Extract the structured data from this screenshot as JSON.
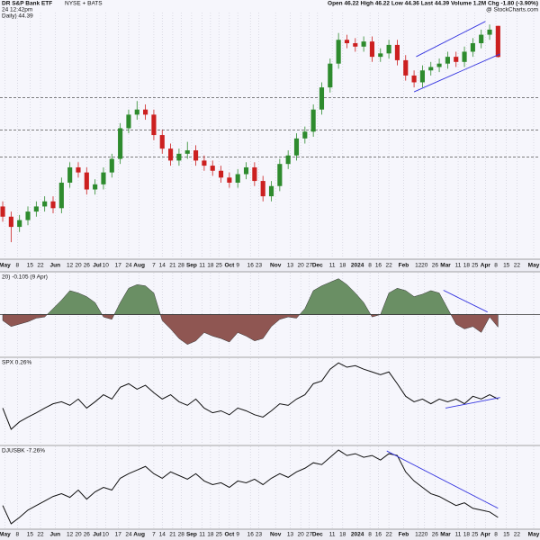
{
  "chart_data": [
    {
      "type": "candlestick",
      "title": "DR S&P Bank ETF",
      "subtitle": "NYSE + BATS",
      "quote": "Open 46.22 High 46.22 Low 44.36 Last 44.39 Volume 1.2M Chg -1.80 (-3.90%)",
      "timestamp": "24 12:42pm",
      "credit": "@ StockCharts.com",
      "label": "Daily) 44.39",
      "up_color": "#2e8b2e",
      "down_color": "#cc2020",
      "grid": true,
      "xlim": [
        -1.3,
        256
      ],
      "ylim": [
        32.5,
        47
      ],
      "x": [
        0,
        4,
        8,
        12,
        16,
        20,
        24,
        28,
        32,
        36,
        40,
        44,
        48,
        52,
        56,
        60,
        64,
        68,
        72,
        76,
        80,
        84,
        88,
        92,
        96,
        100,
        104,
        108,
        112,
        116,
        120,
        124,
        128,
        132,
        136,
        140,
        144,
        148,
        152,
        156,
        160,
        164,
        168,
        172,
        176,
        180,
        184,
        188,
        192,
        196,
        200,
        204,
        208,
        212,
        216,
        220,
        224,
        228,
        232,
        236
      ],
      "open": [
        35.6,
        35.0,
        34.4,
        34.8,
        35.3,
        35.6,
        35.9,
        35.5,
        37.0,
        37.9,
        37.6,
        36.6,
        36.9,
        37.6,
        38.4,
        40.2,
        41.0,
        41.3,
        41.0,
        39.8,
        39.0,
        38.3,
        38.7,
        38.9,
        38.3,
        38.0,
        37.7,
        37.3,
        37.0,
        37.5,
        37.9,
        37.1,
        36.2,
        36.8,
        38.1,
        38.6,
        39.6,
        40.0,
        41.3,
        42.6,
        44.0,
        45.4,
        45.2,
        45.0,
        45.3,
        44.4,
        44.6,
        45.1,
        44.2,
        43.3,
        42.9,
        43.6,
        43.8,
        44.0,
        44.4,
        44.1,
        44.7,
        45.2,
        45.7,
        46.22
      ],
      "high": [
        35.9,
        35.3,
        35.1,
        35.6,
        35.9,
        36.2,
        36.2,
        37.3,
        38.2,
        38.2,
        37.9,
        37.2,
        37.9,
        38.7,
        40.5,
        41.3,
        41.8,
        41.6,
        41.3,
        40.1,
        39.3,
        39.0,
        39.4,
        39.2,
        38.6,
        38.3,
        38.0,
        37.6,
        37.8,
        38.2,
        38.2,
        37.4,
        37.1,
        38.4,
        38.9,
        39.9,
        40.3,
        41.6,
        42.9,
        44.3,
        45.8,
        45.7,
        45.5,
        45.6,
        45.6,
        44.9,
        45.4,
        45.4,
        44.5,
        43.6,
        43.9,
        44.1,
        44.3,
        44.7,
        44.7,
        45.0,
        45.5,
        46.0,
        46.3,
        46.22
      ],
      "low": [
        34.7,
        33.5,
        34.1,
        34.5,
        35.0,
        35.3,
        35.2,
        35.2,
        36.7,
        37.3,
        36.3,
        36.3,
        36.6,
        37.3,
        38.1,
        39.9,
        40.7,
        40.7,
        39.5,
        38.7,
        38.0,
        38.0,
        38.4,
        38.0,
        37.7,
        37.4,
        37.0,
        36.7,
        36.7,
        37.2,
        36.8,
        35.9,
        35.9,
        36.5,
        37.8,
        38.3,
        39.3,
        39.7,
        41.0,
        42.3,
        43.7,
        44.9,
        44.7,
        44.7,
        44.1,
        44.1,
        44.3,
        43.9,
        43.0,
        42.6,
        42.6,
        43.3,
        43.5,
        43.7,
        43.8,
        43.8,
        44.4,
        44.9,
        45.4,
        44.36
      ],
      "close": [
        35.0,
        34.4,
        34.8,
        35.3,
        35.6,
        35.9,
        35.5,
        37.0,
        37.9,
        37.6,
        36.6,
        36.9,
        37.6,
        38.4,
        40.2,
        41.0,
        41.3,
        41.0,
        39.8,
        39.0,
        38.3,
        38.7,
        38.9,
        38.3,
        38.0,
        37.7,
        37.3,
        37.0,
        37.5,
        37.9,
        37.1,
        36.2,
        36.8,
        38.1,
        38.6,
        39.6,
        40.0,
        41.3,
        42.6,
        44.0,
        45.4,
        45.2,
        45.0,
        45.3,
        44.4,
        44.6,
        45.1,
        44.2,
        43.3,
        42.9,
        43.6,
        43.8,
        44.0,
        44.4,
        44.1,
        44.7,
        45.2,
        45.7,
        46.0,
        44.39
      ],
      "reference_lines": [
        42.0,
        40.1,
        38.5
      ],
      "trendline_color": "#3434e0",
      "trendlines": [
        {
          "x": [
            196,
            237
          ],
          "values": [
            42.34,
            44.57
          ]
        },
        {
          "x": [
            197,
            230
          ],
          "values": [
            44.41,
            46.48
          ]
        }
      ],
      "xticks": [
        {
          "value": 1,
          "label": "May"
        },
        {
          "value": 7,
          "label": "8"
        },
        {
          "value": 13,
          "label": "15"
        },
        {
          "value": 18,
          "label": "22"
        },
        {
          "value": 25,
          "label": "Jun"
        },
        {
          "value": 32,
          "label": "12"
        },
        {
          "value": 36,
          "label": "20"
        },
        {
          "value": 40,
          "label": "26"
        },
        {
          "value": 45,
          "label": "Jul"
        },
        {
          "value": 49,
          "label": "10"
        },
        {
          "value": 55,
          "label": "17"
        },
        {
          "value": 60,
          "label": "24"
        },
        {
          "value": 65,
          "label": "Aug"
        },
        {
          "value": 72,
          "label": "7"
        },
        {
          "value": 76,
          "label": "14"
        },
        {
          "value": 81,
          "label": "21"
        },
        {
          "value": 85,
          "label": "28"
        },
        {
          "value": 90,
          "label": "Sep"
        },
        {
          "value": 95,
          "label": "11"
        },
        {
          "value": 99,
          "label": "18"
        },
        {
          "value": 103,
          "label": "25"
        },
        {
          "value": 108,
          "label": "Oct"
        },
        {
          "value": 112,
          "label": "9"
        },
        {
          "value": 118,
          "label": "16"
        },
        {
          "value": 122,
          "label": "23"
        },
        {
          "value": 130,
          "label": "Nov"
        },
        {
          "value": 137,
          "label": "13"
        },
        {
          "value": 142,
          "label": "20"
        },
        {
          "value": 146,
          "label": "27"
        },
        {
          "value": 150,
          "label": "Dec"
        },
        {
          "value": 157,
          "label": "11"
        },
        {
          "value": 162,
          "label": "18"
        },
        {
          "value": 169,
          "label": "2024"
        },
        {
          "value": 175,
          "label": "8"
        },
        {
          "value": 179,
          "label": "16"
        },
        {
          "value": 184,
          "label": "22"
        },
        {
          "value": 191,
          "label": "Feb"
        },
        {
          "value": 198,
          "label": "12"
        },
        {
          "value": 201,
          "label": "20"
        },
        {
          "value": 206,
          "label": "26"
        },
        {
          "value": 211,
          "label": "Mar"
        },
        {
          "value": 217,
          "label": "11"
        },
        {
          "value": 221,
          "label": "18"
        },
        {
          "value": 225,
          "label": "25"
        },
        {
          "value": 230,
          "label": "Apr"
        },
        {
          "value": 235,
          "label": "8"
        },
        {
          "value": 240,
          "label": "15"
        },
        {
          "value": 245,
          "label": "22"
        },
        {
          "value": 253,
          "label": "May"
        }
      ]
    },
    {
      "type": "area",
      "label": "20) -0.105 (9 Apr)",
      "pos_color": "#6a8f64",
      "neg_color": "#8f5652",
      "grid": true,
      "xlim": [
        -1.3,
        256
      ],
      "ylim": [
        -0.35,
        0.35
      ],
      "x": [
        0,
        4,
        8,
        12,
        16,
        20,
        24,
        28,
        32,
        36,
        40,
        44,
        48,
        52,
        56,
        60,
        64,
        68,
        72,
        76,
        80,
        84,
        88,
        92,
        96,
        100,
        104,
        108,
        112,
        116,
        120,
        124,
        128,
        132,
        136,
        140,
        144,
        148,
        152,
        156,
        160,
        164,
        168,
        172,
        176,
        180,
        184,
        188,
        192,
        196,
        200,
        204,
        208,
        212,
        216,
        220,
        224,
        228,
        232,
        236
      ],
      "values": [
        -0.05,
        -0.1,
        -0.08,
        -0.06,
        -0.03,
        -0.02,
        0.05,
        0.12,
        0.2,
        0.18,
        0.15,
        0.1,
        -0.02,
        -0.04,
        0.1,
        0.22,
        0.25,
        0.24,
        0.18,
        -0.05,
        -0.12,
        -0.2,
        -0.25,
        -0.22,
        -0.15,
        -0.18,
        -0.2,
        -0.23,
        -0.15,
        -0.18,
        -0.22,
        -0.2,
        -0.1,
        -0.04,
        -0.02,
        -0.03,
        0.05,
        0.2,
        0.24,
        0.27,
        0.3,
        0.25,
        0.18,
        0.1,
        -0.02,
        0.0,
        0.18,
        0.22,
        0.2,
        0.15,
        0.17,
        0.2,
        0.18,
        0.05,
        -0.08,
        -0.12,
        -0.1,
        -0.15,
        -0.02,
        -0.105
      ],
      "trendline_color": "#3434e0",
      "trendlines": [
        {
          "x": [
            210,
            231
          ],
          "values": [
            0.203,
            0.021
          ]
        }
      ]
    },
    {
      "type": "line",
      "label": "SPX 0.26%",
      "color": "#111111",
      "grid": true,
      "xlim": [
        -1.3,
        256
      ],
      "ylim": [
        0.0079,
        0.0101
      ],
      "x": [
        0,
        4,
        8,
        12,
        16,
        20,
        24,
        28,
        32,
        36,
        40,
        44,
        48,
        52,
        56,
        60,
        64,
        68,
        72,
        76,
        80,
        84,
        88,
        92,
        96,
        100,
        104,
        108,
        112,
        116,
        120,
        124,
        128,
        132,
        136,
        140,
        144,
        148,
        152,
        156,
        160,
        164,
        168,
        172,
        176,
        180,
        184,
        188,
        192,
        196,
        200,
        204,
        208,
        212,
        216,
        220,
        224,
        228,
        232,
        236
      ],
      "values": [
        0.00883,
        0.00829,
        0.00848,
        0.0086,
        0.00871,
        0.00883,
        0.00894,
        0.00899,
        0.0089,
        0.00906,
        0.00883,
        0.00899,
        0.00917,
        0.00906,
        0.00936,
        0.00945,
        0.00931,
        0.00941,
        0.00922,
        0.00906,
        0.00917,
        0.00899,
        0.0089,
        0.00906,
        0.00883,
        0.00871,
        0.00876,
        0.00866,
        0.00883,
        0.00876,
        0.00866,
        0.0086,
        0.00876,
        0.00894,
        0.0089,
        0.00906,
        0.00917,
        0.00945,
        0.00952,
        0.00982,
        0.00998,
        0.00987,
        0.00991,
        0.00982,
        0.00975,
        0.00968,
        0.00975,
        0.00945,
        0.00913,
        0.00899,
        0.00906,
        0.00894,
        0.00906,
        0.00899,
        0.00906,
        0.00894,
        0.00913,
        0.00906,
        0.00917,
        0.00906
      ],
      "trendline_color": "#3434e0",
      "trendlines": [
        {
          "x": [
            211,
            237
          ],
          "values": [
            0.00883,
            0.0091
          ]
        }
      ]
    },
    {
      "type": "line",
      "label": "DJUSBK -7.26%",
      "color": "#111111",
      "grid": true,
      "xlim": [
        -1.3,
        256
      ],
      "ylim": [
        0.086,
        0.095
      ],
      "x": [
        0,
        4,
        8,
        12,
        16,
        20,
        24,
        28,
        32,
        36,
        40,
        44,
        48,
        52,
        56,
        60,
        64,
        68,
        72,
        76,
        80,
        84,
        88,
        92,
        96,
        100,
        104,
        108,
        112,
        116,
        120,
        124,
        128,
        132,
        136,
        140,
        144,
        148,
        152,
        156,
        160,
        164,
        168,
        172,
        176,
        180,
        184,
        188,
        192,
        196,
        200,
        204,
        208,
        212,
        216,
        220,
        224,
        228,
        232,
        236
      ],
      "values": [
        0.0885,
        0.0865,
        0.0872,
        0.088,
        0.0885,
        0.089,
        0.0895,
        0.0898,
        0.0894,
        0.0902,
        0.0892,
        0.09,
        0.0905,
        0.0902,
        0.0915,
        0.092,
        0.0924,
        0.0928,
        0.092,
        0.0915,
        0.0922,
        0.0918,
        0.0914,
        0.092,
        0.0912,
        0.0908,
        0.091,
        0.0905,
        0.0912,
        0.091,
        0.0914,
        0.0908,
        0.0915,
        0.092,
        0.0916,
        0.0922,
        0.0926,
        0.0932,
        0.093,
        0.0938,
        0.0946,
        0.094,
        0.0942,
        0.0938,
        0.094,
        0.0935,
        0.0942,
        0.094,
        0.0922,
        0.0912,
        0.0905,
        0.0898,
        0.0895,
        0.089,
        0.0885,
        0.0888,
        0.0882,
        0.088,
        0.0878,
        0.0872
      ],
      "trendline_color": "#3434e0",
      "trendlines": [
        {
          "x": [
            183,
            236
          ],
          "values": [
            0.0945,
            0.0882
          ]
        }
      ],
      "xticks": [
        {
          "value": 1,
          "label": "May"
        },
        {
          "value": 7,
          "label": "8"
        },
        {
          "value": 13,
          "label": "15"
        },
        {
          "value": 18,
          "label": "22"
        },
        {
          "value": 25,
          "label": "Jun"
        },
        {
          "value": 32,
          "label": "12"
        },
        {
          "value": 36,
          "label": "20"
        },
        {
          "value": 40,
          "label": "26"
        },
        {
          "value": 45,
          "label": "Jul"
        },
        {
          "value": 49,
          "label": "10"
        },
        {
          "value": 55,
          "label": "17"
        },
        {
          "value": 60,
          "label": "24"
        },
        {
          "value": 65,
          "label": "Aug"
        },
        {
          "value": 72,
          "label": "7"
        },
        {
          "value": 76,
          "label": "14"
        },
        {
          "value": 81,
          "label": "21"
        },
        {
          "value": 85,
          "label": "28"
        },
        {
          "value": 90,
          "label": "Sep"
        },
        {
          "value": 95,
          "label": "11"
        },
        {
          "value": 99,
          "label": "18"
        },
        {
          "value": 103,
          "label": "25"
        },
        {
          "value": 108,
          "label": "Oct"
        },
        {
          "value": 112,
          "label": "9"
        },
        {
          "value": 118,
          "label": "16"
        },
        {
          "value": 122,
          "label": "23"
        },
        {
          "value": 130,
          "label": "Nov"
        },
        {
          "value": 137,
          "label": "13"
        },
        {
          "value": 142,
          "label": "20"
        },
        {
          "value": 146,
          "label": "27"
        },
        {
          "value": 150,
          "label": "Dec"
        },
        {
          "value": 157,
          "label": "11"
        },
        {
          "value": 162,
          "label": "18"
        },
        {
          "value": 169,
          "label": "2024"
        },
        {
          "value": 175,
          "label": "8"
        },
        {
          "value": 179,
          "label": "16"
        },
        {
          "value": 184,
          "label": "22"
        },
        {
          "value": 191,
          "label": "Feb"
        },
        {
          "value": 198,
          "label": "12"
        },
        {
          "value": 201,
          "label": "20"
        },
        {
          "value": 206,
          "label": "26"
        },
        {
          "value": 211,
          "label": "Mar"
        },
        {
          "value": 217,
          "label": "11"
        },
        {
          "value": 221,
          "label": "18"
        },
        {
          "value": 225,
          "label": "25"
        },
        {
          "value": 230,
          "label": "Apr"
        },
        {
          "value": 235,
          "label": "8"
        },
        {
          "value": 240,
          "label": "15"
        },
        {
          "value": 245,
          "label": "22"
        },
        {
          "value": 253,
          "label": "May"
        }
      ]
    }
  ]
}
